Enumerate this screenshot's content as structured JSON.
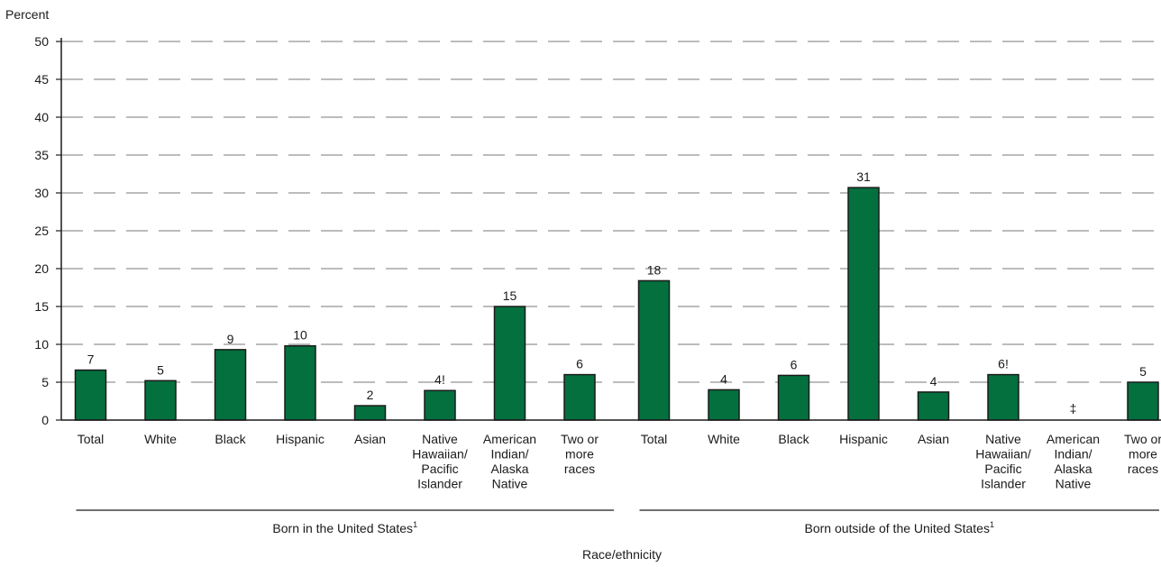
{
  "chart_data": {
    "type": "bar",
    "ylabel": "Percent",
    "xlabel": "Race/ethnicity",
    "ylim": [
      0,
      50
    ],
    "yticks": [
      0,
      5,
      10,
      15,
      20,
      25,
      30,
      35,
      40,
      45,
      50
    ],
    "grid": true,
    "bar_color": "#04703e",
    "groups": [
      {
        "label": "Born in the United States",
        "footnote": "1",
        "categories": [
          [
            "Total"
          ],
          [
            "White"
          ],
          [
            "Black"
          ],
          [
            "Hispanic"
          ],
          [
            "Asian"
          ],
          [
            "Native",
            "Hawaiian/",
            "Pacific",
            "Islander"
          ],
          [
            "American",
            "Indian/",
            "Alaska",
            "Native"
          ],
          [
            "Two or",
            "more",
            "races"
          ]
        ],
        "values": [
          6.6,
          5.2,
          9.3,
          9.8,
          1.9,
          3.9,
          15.0,
          6.0
        ],
        "labels": [
          "7",
          "5",
          "9",
          "10",
          "2",
          "4!",
          "15",
          "6"
        ]
      },
      {
        "label": "Born outside of the United States",
        "footnote": "1",
        "categories": [
          [
            "Total"
          ],
          [
            "White"
          ],
          [
            "Black"
          ],
          [
            "Hispanic"
          ],
          [
            "Asian"
          ],
          [
            "Native",
            "Hawaiian/",
            "Pacific",
            "Islander"
          ],
          [
            "American",
            "Indian/",
            "Alaska",
            "Native"
          ],
          [
            "Two or",
            "more",
            "races"
          ]
        ],
        "values": [
          18.4,
          4.0,
          5.9,
          30.7,
          3.7,
          6.0,
          null,
          5.0
        ],
        "labels": [
          "18",
          "4",
          "6",
          "31",
          "4",
          "6!",
          "‡",
          "5"
        ]
      }
    ]
  }
}
